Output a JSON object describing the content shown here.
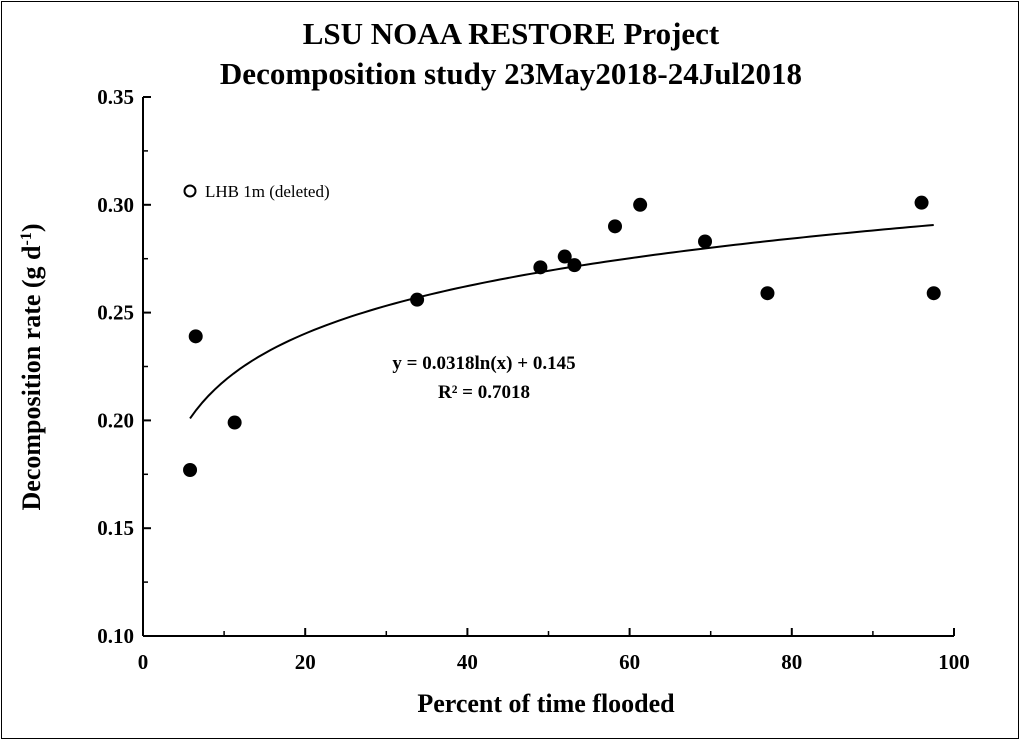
{
  "chart_data": {
    "type": "scatter",
    "title": "LSU NOAA RESTORE Project",
    "subtitle": "Decomposition study 23May2018-24Jul2018",
    "xlabel": "Percent of time flooded",
    "ylabel": "Decomposition rate (g d",
    "ylabel_sup": "-1",
    "ylabel_end": ")",
    "xlim": [
      0,
      100
    ],
    "ylim": [
      0.1,
      0.35
    ],
    "x_ticks": [
      "0",
      "20",
      "40",
      "60",
      "80",
      "100"
    ],
    "y_ticks": [
      "0.10",
      "0.15",
      "0.20",
      "0.25",
      "0.30",
      "0.35"
    ],
    "grid": false,
    "series": [
      {
        "marker": "filled-circle",
        "color": "#000000",
        "points": [
          {
            "x": 5.8,
            "y": 0.177
          },
          {
            "x": 6.5,
            "y": 0.239
          },
          {
            "x": 11.3,
            "y": 0.199
          },
          {
            "x": 33.8,
            "y": 0.256
          },
          {
            "x": 49.0,
            "y": 0.271
          },
          {
            "x": 52.0,
            "y": 0.276
          },
          {
            "x": 53.2,
            "y": 0.272
          },
          {
            "x": 58.2,
            "y": 0.29
          },
          {
            "x": 61.3,
            "y": 0.3
          },
          {
            "x": 69.3,
            "y": 0.283
          },
          {
            "x": 77.0,
            "y": 0.259
          },
          {
            "x": 96.0,
            "y": 0.301
          },
          {
            "x": 97.5,
            "y": 0.259
          }
        ]
      }
    ],
    "legend": {
      "label": "LHB 1m (deleted)",
      "marker": "open-circle",
      "placement": "top-left"
    },
    "trendline": {
      "type": "logarithmic",
      "a": 0.0318,
      "b": 0.145,
      "x_range": [
        5.8,
        97.5
      ],
      "equation": "y = 0.0318ln(x) + 0.145",
      "r2": "R² = 0.7018"
    }
  }
}
